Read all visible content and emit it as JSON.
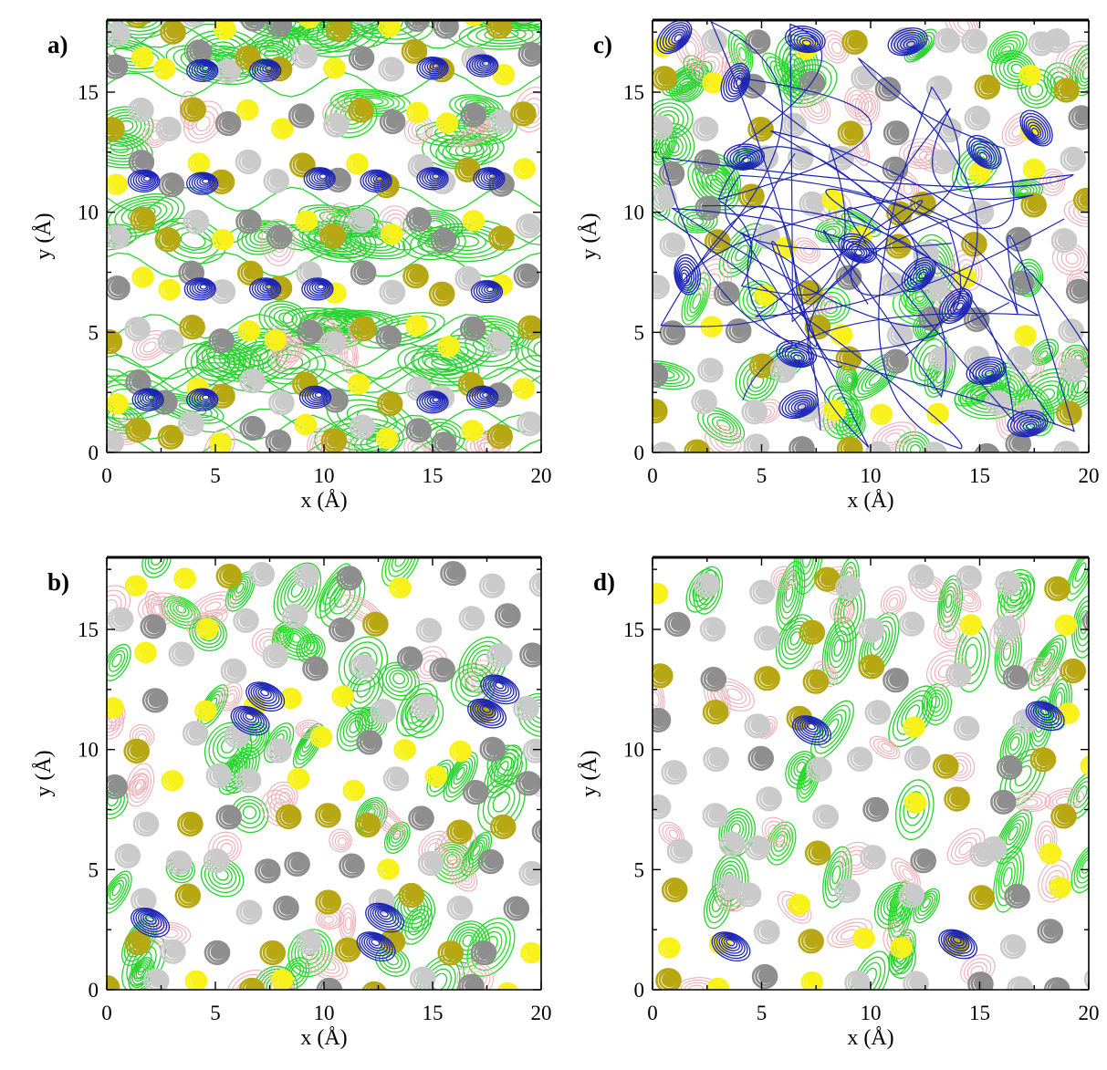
{
  "chart_data": [
    {
      "type": "contour",
      "panel_label": "a)",
      "xlabel": "x (Å)",
      "ylabel": "y (Å)",
      "xlim": [
        0,
        20
      ],
      "ylim": [
        0,
        18
      ],
      "x_ticks": [
        0,
        5,
        10,
        15,
        20
      ],
      "y_ticks": [
        0,
        5,
        10,
        15
      ],
      "pattern": "layered",
      "seed": 11,
      "blue_sites": [
        [
          1.9,
          2.2
        ],
        [
          4.4,
          2.2
        ],
        [
          9.6,
          2.3
        ],
        [
          15.0,
          2.1
        ],
        [
          17.3,
          2.3
        ],
        [
          4.3,
          6.8
        ],
        [
          7.3,
          6.8
        ],
        [
          9.7,
          6.8
        ],
        [
          17.5,
          6.7
        ],
        [
          1.7,
          11.3
        ],
        [
          4.4,
          11.2
        ],
        [
          9.8,
          11.4
        ],
        [
          12.4,
          11.3
        ],
        [
          15.0,
          11.4
        ],
        [
          17.6,
          11.4
        ],
        [
          4.4,
          15.9
        ],
        [
          7.3,
          15.9
        ],
        [
          15.0,
          16.0
        ],
        [
          17.3,
          16.1
        ]
      ]
    },
    {
      "type": "contour",
      "panel_label": "b)",
      "xlabel": "x (Å)",
      "ylabel": "y (Å)",
      "xlim": [
        0,
        20
      ],
      "ylim": [
        0,
        18
      ],
      "x_ticks": [
        0,
        5,
        10,
        15,
        20
      ],
      "y_ticks": [
        0,
        5,
        10,
        15
      ],
      "pattern": "diagonal",
      "seed": 23,
      "blue_sites": [
        [
          2.0,
          2.8
        ],
        [
          12.8,
          3.0
        ],
        [
          12.4,
          1.8
        ],
        [
          7.3,
          12.2
        ],
        [
          6.6,
          11.2
        ],
        [
          17.5,
          11.5
        ],
        [
          18.1,
          12.5
        ]
      ]
    },
    {
      "type": "contour",
      "panel_label": "c)",
      "xlabel": "x (Å)",
      "ylabel": "y (Å)",
      "xlim": [
        0,
        20
      ],
      "ylim": [
        0,
        18
      ],
      "x_ticks": [
        0,
        5,
        10,
        15,
        20
      ],
      "y_ticks": [
        0,
        5,
        10,
        15
      ],
      "pattern": "disordered",
      "seed": 37,
      "blue_sites": [
        [
          1.0,
          17.3
        ],
        [
          4.2,
          12.3
        ],
        [
          3.8,
          15.4
        ],
        [
          11.7,
          17.1
        ],
        [
          7.0,
          17.2
        ],
        [
          17.6,
          13.5
        ],
        [
          15.2,
          12.5
        ],
        [
          1.6,
          7.4
        ],
        [
          6.6,
          4.1
        ],
        [
          6.7,
          2.0
        ],
        [
          12.2,
          7.4
        ],
        [
          13.9,
          6.1
        ],
        [
          15.3,
          3.4
        ],
        [
          17.2,
          1.2
        ],
        [
          9.4,
          8.5
        ]
      ]
    },
    {
      "type": "contour",
      "panel_label": "d)",
      "xlabel": "x (Å)",
      "ylabel": "y (Å)",
      "xlim": [
        0,
        20
      ],
      "ylim": [
        0,
        18
      ],
      "x_ticks": [
        0,
        5,
        10,
        15,
        20
      ],
      "y_ticks": [
        0,
        5,
        10,
        15
      ],
      "pattern": "sparse",
      "seed": 51,
      "blue_sites": [
        [
          7.3,
          10.8
        ],
        [
          18.0,
          11.4
        ],
        [
          3.6,
          1.8
        ],
        [
          14.0,
          1.9
        ]
      ]
    }
  ],
  "colors": {
    "lightgray": "#cacaca",
    "darkgray": "#8e8e8e",
    "yellow": "#f9f21a",
    "olive": "#b7a712",
    "green": "#29d12f",
    "pink": "#f0aeb7",
    "blue": "#1a23b5",
    "axis": "#000000"
  }
}
